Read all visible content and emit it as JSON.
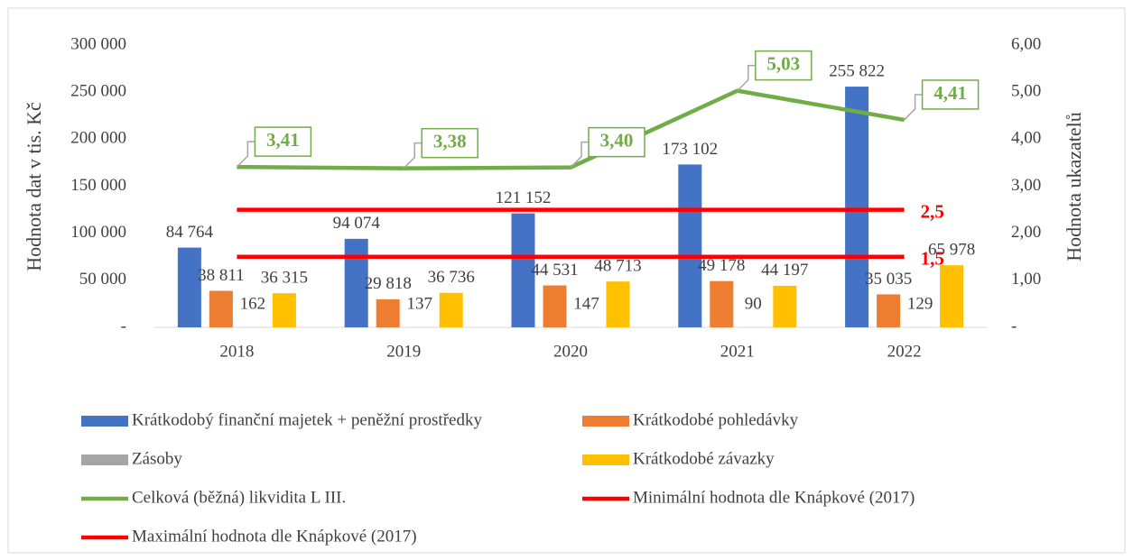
{
  "chart_data": {
    "type": "bar",
    "categories": [
      "2018",
      "2019",
      "2020",
      "2021",
      "2022"
    ],
    "y_label": "Hodnota  dat v tis. Kč",
    "y2_label": "Hodnota ukazatelů",
    "ylim": [
      0,
      300000
    ],
    "yticks": [
      {
        "value": 0,
        "label": "-"
      },
      {
        "value": 50000,
        "label": "50 000"
      },
      {
        "value": 100000,
        "label": "100 000"
      },
      {
        "value": 150000,
        "label": "150 000"
      },
      {
        "value": 200000,
        "label": "200 000"
      },
      {
        "value": 250000,
        "label": "250 000"
      },
      {
        "value": 300000,
        "label": "300 000"
      }
    ],
    "y2lim": [
      0,
      6
    ],
    "y2ticks": [
      {
        "value": 0,
        "label": "-"
      },
      {
        "value": 1,
        "label": "1,00"
      },
      {
        "value": 2,
        "label": "2,00"
      },
      {
        "value": 3,
        "label": "3,00"
      },
      {
        "value": 4,
        "label": "4,00"
      },
      {
        "value": 5,
        "label": "5,00"
      },
      {
        "value": 6,
        "label": "6,00"
      }
    ],
    "legend": "bottom",
    "series": [
      {
        "name": "Krátkodobý finanční majetek + peněžní prostředky",
        "type": "bar",
        "color": "#4472c4",
        "values": [
          84764,
          94074,
          121152,
          173102,
          255822
        ],
        "value_labels": [
          "84 764",
          "94 074",
          "121 152",
          "173 102",
          "255 822"
        ]
      },
      {
        "name": "Krátkodobé pohledávky",
        "type": "bar",
        "color": "#ed7d31",
        "values": [
          38811,
          29818,
          44531,
          49178,
          35035
        ],
        "value_labels": [
          "38 811",
          "29 818",
          "44 531",
          "49 178",
          "35 035"
        ]
      },
      {
        "name": "Zásoby",
        "type": "bar",
        "color": "#a5a5a5",
        "values": [
          162,
          137,
          147,
          90,
          129
        ]
      },
      {
        "name": "Krátkodobé závazky",
        "type": "bar",
        "color": "#ffc000",
        "values": [
          36315,
          36736,
          48713,
          44197,
          65978
        ],
        "value_labels": [
          "36 315",
          "36 736",
          "48 713",
          "44 197",
          "65 978"
        ]
      },
      {
        "name": "Celková (běžná) likvidita L III.",
        "type": "line",
        "axis": "y2",
        "color": "#70ad47",
        "values": [
          3.41,
          3.38,
          3.4,
          5.03,
          4.41
        ],
        "value_labels": [
          "3,41",
          "3,38",
          "3,40",
          "5,03",
          "4,41"
        ]
      },
      {
        "name": "Minimální hodnota dle Knápkové (2017)",
        "type": "line",
        "axis": "y2",
        "color": "#ff0000",
        "values": [
          1.5,
          1.5,
          1.5,
          1.5,
          1.5
        ],
        "value_labels": [
          null,
          null,
          null,
          null,
          "1,5"
        ]
      },
      {
        "name": "Maximální hodnota dle Knápkové (2017)",
        "type": "line",
        "axis": "y2",
        "color": "#ff0000",
        "values": [
          2.5,
          2.5,
          2.5,
          2.5,
          2.5
        ],
        "value_labels": [
          null,
          null,
          null,
          null,
          "2,5"
        ]
      }
    ]
  }
}
